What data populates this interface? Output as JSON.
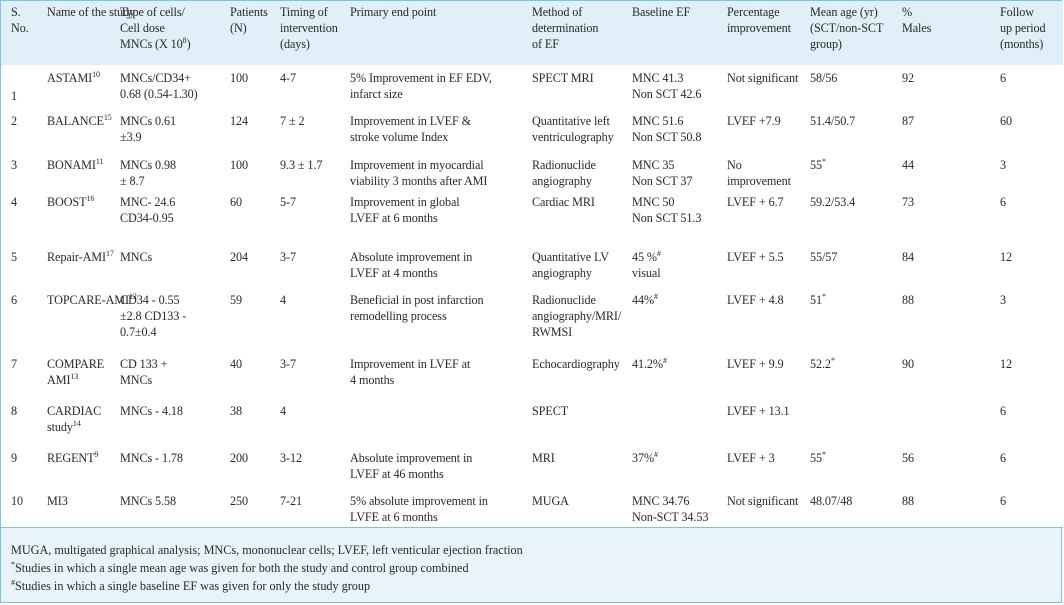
{
  "headers": [
    {
      "key": "sno",
      "lines": [
        "S.",
        "No."
      ]
    },
    {
      "key": "name",
      "lines": [
        "Name of the study"
      ]
    },
    {
      "key": "type",
      "lines": [
        "Type of cells/",
        "Cell dose",
        "MNCs (X 10⁸)"
      ]
    },
    {
      "key": "patients",
      "lines": [
        "Patients",
        "(N)"
      ]
    },
    {
      "key": "timing",
      "lines": [
        "Timing of",
        "intervention",
        "(days)"
      ]
    },
    {
      "key": "endpoint",
      "lines": [
        "Primary end point"
      ]
    },
    {
      "key": "method",
      "lines": [
        "Method of",
        "determination",
        "of EF"
      ]
    },
    {
      "key": "baseline",
      "lines": [
        "Baseline EF"
      ]
    },
    {
      "key": "pct",
      "lines": [
        "Percentage",
        "improvement"
      ]
    },
    {
      "key": "age",
      "lines": [
        "Mean age (yr)",
        "(SCT/non-SCT",
        "group)"
      ]
    },
    {
      "key": "males",
      "lines": [
        "%",
        "Males"
      ]
    },
    {
      "key": "follow",
      "lines": [
        "Follow",
        "up period",
        "(months)"
      ]
    }
  ],
  "rows": [
    {
      "sno": "1",
      "name": "ASTAMI",
      "ref": "10",
      "type": [
        "MNCs/CD34+",
        "0.68 (0.54-1.30)"
      ],
      "patients": "100",
      "timing": "4-7",
      "endpoint": [
        "5% Improvement in EF EDV,",
        "infarct size"
      ],
      "method": [
        "SPECT MRI"
      ],
      "baseline": [
        "MNC 41.3",
        "Non SCT 42.6"
      ],
      "pct": [
        "Not significant"
      ],
      "age": [
        "58/56"
      ],
      "males": "92",
      "follow": "6"
    },
    {
      "sno": "2",
      "name": "BALANCE",
      "ref": "15",
      "type": [
        "MNCs 0.61",
        "±3.9"
      ],
      "patients": "124",
      "timing": "7 ± 2",
      "endpoint": [
        "Improvement in LVEF &",
        "stroke volume Index"
      ],
      "method": [
        "Quantitative left",
        "ventriculography"
      ],
      "baseline": [
        "MNC 51.6",
        "Non SCT 50.8"
      ],
      "pct": [
        "LVEF +7.9"
      ],
      "age": [
        "51.4/50.7"
      ],
      "males": "87",
      "follow": "60"
    },
    {
      "sno": "3",
      "name": "BONAMI",
      "ref": "11",
      "type": [
        "MNCs 0.98",
        "± 8.7"
      ],
      "patients": "100",
      "timing": "9.3 ± 1.7",
      "endpoint": [
        "Improvement in myocardial",
        "viability 3 months after AMI"
      ],
      "method": [
        "Radionuclide",
        "angiography"
      ],
      "baseline": [
        "MNC 35",
        "Non SCT 37"
      ],
      "pct": [
        "No",
        "improvement"
      ],
      "age": [
        "55*"
      ],
      "males": "44",
      "follow": "3"
    },
    {
      "sno": "4",
      "name": "BOOST",
      "ref": "16",
      "type": [
        "MNC- 24.6",
        "CD34-0.95"
      ],
      "patients": "60",
      "timing": "5-7",
      "endpoint": [
        "Improvement in global",
        "LVEF at 6 months"
      ],
      "method": [
        "Cardiac MRI"
      ],
      "baseline": [
        "MNC 50",
        "Non SCT 51.3"
      ],
      "pct": [
        "LVEF + 6.7"
      ],
      "age": [
        "59.2/53.4"
      ],
      "males": "73",
      "follow": "6"
    },
    {
      "sno": "5",
      "name": "Repair-AMI",
      "ref": "17",
      "type": [
        "MNCs"
      ],
      "patients": "204",
      "timing": "3-7",
      "endpoint": [
        "Absolute improvement in",
        "LVEF at 4 months"
      ],
      "method": [
        "Quantitative LV",
        "angiography"
      ],
      "baseline": [
        "45 %#",
        "visual"
      ],
      "pct": [
        "LVEF + 5.5"
      ],
      "age": [
        "55/57"
      ],
      "males": "84",
      "follow": "12"
    },
    {
      "sno": "6",
      "name": "TOPCARE-AMI",
      "ref": "12",
      "type": [
        "CD34 - 0.55",
        "±2.8 CD133 -",
        "0.7±0.4"
      ],
      "patients": "59",
      "timing": "4",
      "endpoint": [
        "Beneficial in post infarction",
        "remodelling process"
      ],
      "method": [
        "Radionuclide",
        "angiography/MRI/",
        "RWMSI"
      ],
      "baseline": [
        "44%#"
      ],
      "pct": [
        "LVEF + 4.8"
      ],
      "age": [
        "51*"
      ],
      "males": "88",
      "follow": "3"
    },
    {
      "sno": "7",
      "name": "COMPARE",
      "name2": "AMI",
      "ref": "13",
      "type": [
        "CD 133 +",
        "MNCs"
      ],
      "patients": "40",
      "timing": "3-7",
      "endpoint": [
        "Improvement in LVEF at",
        "4 months"
      ],
      "method": [
        "Echocardiography"
      ],
      "baseline": [
        "41.2%#"
      ],
      "pct": [
        "LVEF + 9.9"
      ],
      "age": [
        "52.2*"
      ],
      "males": "90",
      "follow": "12"
    },
    {
      "sno": "8",
      "name": "CARDIAC",
      "name2": "study",
      "ref": "14",
      "type": [
        "MNCs - 4.18"
      ],
      "patients": "38",
      "timing": "4",
      "endpoint": [],
      "method": [
        "SPECT"
      ],
      "baseline": [],
      "pct": [
        "LVEF + 13.1"
      ],
      "age": [],
      "males": "",
      "follow": "6"
    },
    {
      "sno": "9",
      "name": "REGENT",
      "ref": "9",
      "type": [
        "MNCs - 1.78"
      ],
      "patients": "200",
      "timing": "3-12",
      "endpoint": [
        "Absolute improvement in",
        "LVEF at 46 months"
      ],
      "method": [
        "MRI"
      ],
      "baseline": [
        "37%#"
      ],
      "pct": [
        "LVEF + 3"
      ],
      "age": [
        "55*"
      ],
      "males": "56",
      "follow": "6"
    },
    {
      "sno": "10",
      "name": "MI3",
      "ref": "",
      "type": [
        "MNCs 5.58"
      ],
      "patients": "250",
      "timing": "7-21",
      "endpoint": [
        "5% absolute improvement in",
        "LVFE at 6 months"
      ],
      "method": [
        "MUGA"
      ],
      "baseline": [
        "MNC 34.76",
        "Non-SCT 34.53"
      ],
      "pct": [
        "Not significant"
      ],
      "age": [
        "48.07/48"
      ],
      "males": "88",
      "follow": "6"
    }
  ],
  "footnotes": [
    "MUGA, multigated graphical analysis; MNCs, mononuclear cells; LVEF, left venticular ejection fraction",
    "*Studies in which a single mean age was given for both the study and control group combined",
    "#Studies in which a single baseline EF was given for only the study group"
  ],
  "colors": {
    "border": "#7cc3e6",
    "header_bg": "#e1eff8",
    "footer_bg": "#e8f3fa"
  }
}
